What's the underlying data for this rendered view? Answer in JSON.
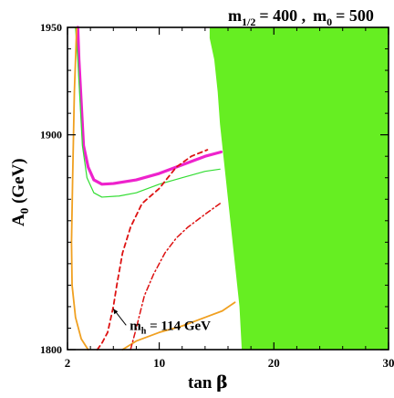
{
  "chart_data": {
    "type": "line",
    "title": {
      "m_half_sub": "1/2",
      "m_half_val": "= 400 ,",
      "m0_sub": "0",
      "m0_val": "= 500"
    },
    "xlabel": {
      "main": "tan ",
      "greek": "β"
    },
    "ylabel": {
      "main": "A",
      "sub": "0",
      "unit": " (GeV)"
    },
    "xlim": [
      2,
      30
    ],
    "ylim": [
      1800,
      1950
    ],
    "x_ticks": [
      2,
      10,
      20,
      30
    ],
    "y_ticks": [
      1800,
      1900,
      1950
    ],
    "annotation": {
      "text_main": "m",
      "text_sub": "h",
      "text_rest": " = 114 GeV",
      "points_to": {
        "x": 6.0,
        "y": 1819
      }
    },
    "excluded_region": {
      "color": "#66ee22",
      "boundary": [
        {
          "x": 14.4,
          "y": 1950
        },
        {
          "x": 14.4,
          "y": 1945
        },
        {
          "x": 14.8,
          "y": 1935
        },
        {
          "x": 15.1,
          "y": 1920
        },
        {
          "x": 15.3,
          "y": 1905
        },
        {
          "x": 15.6,
          "y": 1890
        },
        {
          "x": 16.0,
          "y": 1870
        },
        {
          "x": 16.5,
          "y": 1845
        },
        {
          "x": 17.0,
          "y": 1820
        },
        {
          "x": 17.2,
          "y": 1800
        }
      ]
    },
    "series": [
      {
        "style": "thick",
        "color": "#ee22cc",
        "width": 3.2,
        "dash": "",
        "points": [
          [
            2.9,
            1950
          ],
          [
            3.0,
            1935
          ],
          [
            3.2,
            1915
          ],
          [
            3.4,
            1895
          ],
          [
            3.8,
            1885
          ],
          [
            4.3,
            1879
          ],
          [
            5.0,
            1877
          ],
          [
            6.0,
            1877.3
          ],
          [
            8.0,
            1879
          ],
          [
            10.0,
            1882
          ],
          [
            12.0,
            1886
          ],
          [
            14.0,
            1890
          ],
          [
            15.4,
            1892
          ]
        ]
      },
      {
        "style": "thin",
        "color": "#33dd33",
        "width": 1.2,
        "dash": "",
        "points": [
          [
            2.7,
            1950
          ],
          [
            2.9,
            1935
          ],
          [
            3.1,
            1915
          ],
          [
            3.3,
            1895
          ],
          [
            3.7,
            1880
          ],
          [
            4.3,
            1873
          ],
          [
            5.0,
            1871
          ],
          [
            6.5,
            1871.5
          ],
          [
            8.0,
            1873
          ],
          [
            10.0,
            1877
          ],
          [
            12.0,
            1880
          ],
          [
            14.0,
            1883
          ],
          [
            15.3,
            1884
          ]
        ]
      },
      {
        "style": "thin",
        "color": "#f0a020",
        "width": 1.8,
        "dash": "",
        "points": [
          [
            2.8,
            1950
          ],
          [
            2.6,
            1920
          ],
          [
            2.45,
            1880
          ],
          [
            2.35,
            1850
          ],
          [
            2.4,
            1830
          ],
          [
            2.7,
            1815
          ],
          [
            3.2,
            1805
          ],
          [
            3.8,
            1800
          ]
        ]
      },
      {
        "style": "thin",
        "color": "#f0a020",
        "width": 1.8,
        "dash": "",
        "points": [
          [
            6.8,
            1800
          ],
          [
            8.0,
            1804
          ],
          [
            10.0,
            1808
          ],
          [
            12.0,
            1811
          ],
          [
            14.0,
            1815
          ],
          [
            15.5,
            1818
          ],
          [
            16.6,
            1822
          ]
        ]
      },
      {
        "style": "dashed",
        "color": "#dd1111",
        "width": 1.8,
        "dash": "5,4",
        "points": [
          [
            4.6,
            1800
          ],
          [
            5.0,
            1803
          ],
          [
            5.5,
            1808
          ],
          [
            6.0,
            1820
          ],
          [
            6.3,
            1830
          ],
          [
            6.8,
            1845
          ],
          [
            7.5,
            1857
          ],
          [
            8.5,
            1868
          ],
          [
            10.0,
            1875
          ],
          [
            11.5,
            1885
          ],
          [
            12.8,
            1890
          ],
          [
            14.2,
            1893
          ]
        ]
      },
      {
        "style": "dashdot",
        "color": "#dd1111",
        "width": 1.5,
        "dash": "6,3,1.5,3",
        "points": [
          [
            7.5,
            1800
          ],
          [
            8.0,
            1810
          ],
          [
            8.7,
            1825
          ],
          [
            9.5,
            1835
          ],
          [
            10.5,
            1845
          ],
          [
            11.5,
            1852
          ],
          [
            12.5,
            1857
          ],
          [
            14.0,
            1863
          ],
          [
            15.3,
            1868
          ]
        ]
      }
    ],
    "grid": false,
    "legend": "none"
  }
}
